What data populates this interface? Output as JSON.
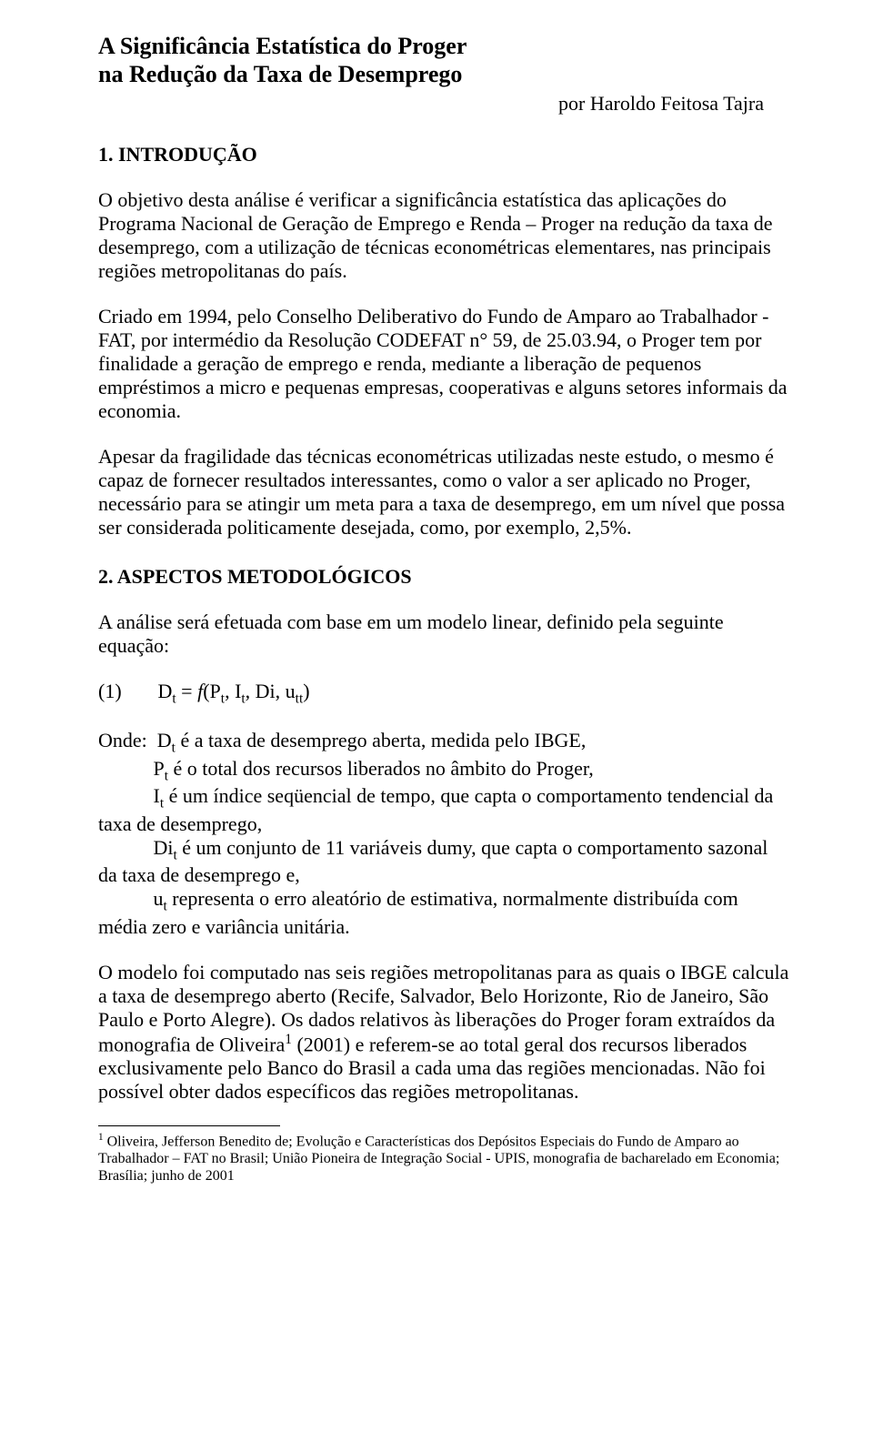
{
  "title_line1": "A Significância Estatística do Proger",
  "title_line2": "na Redução da Taxa de Desemprego",
  "author": "por Haroldo Feitosa Tajra",
  "section1_heading": "1. INTRODUÇÃO",
  "para1": "O objetivo desta análise é verificar a significância estatística das aplicações do Programa Nacional de Geração de Emprego e Renda – Proger na redução da taxa de desemprego, com a utilização de técnicas econométricas elementares, nas principais regiões metropolitanas do país.",
  "para2": "Criado em 1994, pelo Conselho Deliberativo do Fundo de Amparo ao Trabalhador - FAT, por intermédio da Resolução CODEFAT n° 59, de 25.03.94, o Proger tem por finalidade a geração de emprego e renda, mediante a liberação de pequenos empréstimos a micro e pequenas empresas, cooperativas e alguns setores informais da economia.",
  "para3": "Apesar da fragilidade das técnicas econométricas utilizadas neste estudo, o mesmo é capaz de fornecer resultados interessantes, como o valor a ser aplicado no Proger, necessário para se atingir um meta para a taxa de desemprego, em um nível que possa ser considerada politicamente desejada, como, por exemplo, 2,5%.",
  "section2_heading": "2. ASPECTOS METODOLÓGICOS",
  "para4": "A análise será efetuada com base em um modelo linear, definido pela seguinte equação:",
  "eq_number": "(1)",
  "eq_lhs": "D",
  "eq_lhs_sub": "t",
  "eq_eq": " = ",
  "eq_f": "f",
  "eq_open": "(P",
  "eq_p_sub": "t",
  "eq_sep1": ", I",
  "eq_i_sub": "t",
  "eq_sep2": ", Di, u",
  "eq_u_sub": "tt",
  "eq_close": ")",
  "where_label": "Onde:",
  "where_d1": "D",
  "where_d1_sub": "t",
  "where_d1_text": " é a taxa de desemprego aberta, medida pelo IBGE,",
  "where_p": "P",
  "where_p_sub": "t",
  "where_p_text": " é o total dos recursos liberados no âmbito do Proger,",
  "where_i": "I",
  "where_i_sub": "t",
  "where_i_text": " é um índice seqüencial de tempo, que capta o comportamento tendencial da taxa de desemprego,",
  "where_di": "Di",
  "where_di_sub": "t",
  "where_di_text": " é um conjunto de 11 variáveis dumy, que capta o comportamento sazonal da taxa de desemprego e,",
  "where_u": "u",
  "where_u_sub": "t",
  "where_u_text": " representa o erro aleatório de estimativa, normalmente distribuída com média zero e variância unitária.",
  "para5_part1": "O modelo foi computado nas seis regiões metropolitanas para as quais o IBGE calcula a taxa de desemprego aberto (Recife, Salvador, Belo Horizonte, Rio de Janeiro, São Paulo e Porto Alegre). Os dados relativos às liberações do Proger foram extraídos da monografia de Oliveira",
  "para5_sup": "1",
  "para5_part2": " (2001) e referem-se ao total geral dos recursos liberados exclusivamente pelo Banco do Brasil a cada uma das regiões mencionadas. Não foi possível obter dados específicos das regiões metropolitanas.",
  "footnote_sup": "1",
  "footnote_text": " Oliveira, Jefferson Benedito de; Evolução e Características dos Depósitos Especiais do Fundo de Amparo ao Trabalhador – FAT no Brasil; União Pioneira de Integração Social - UPIS, monografia de bacharelado em Economia; Brasília; junho de 2001"
}
